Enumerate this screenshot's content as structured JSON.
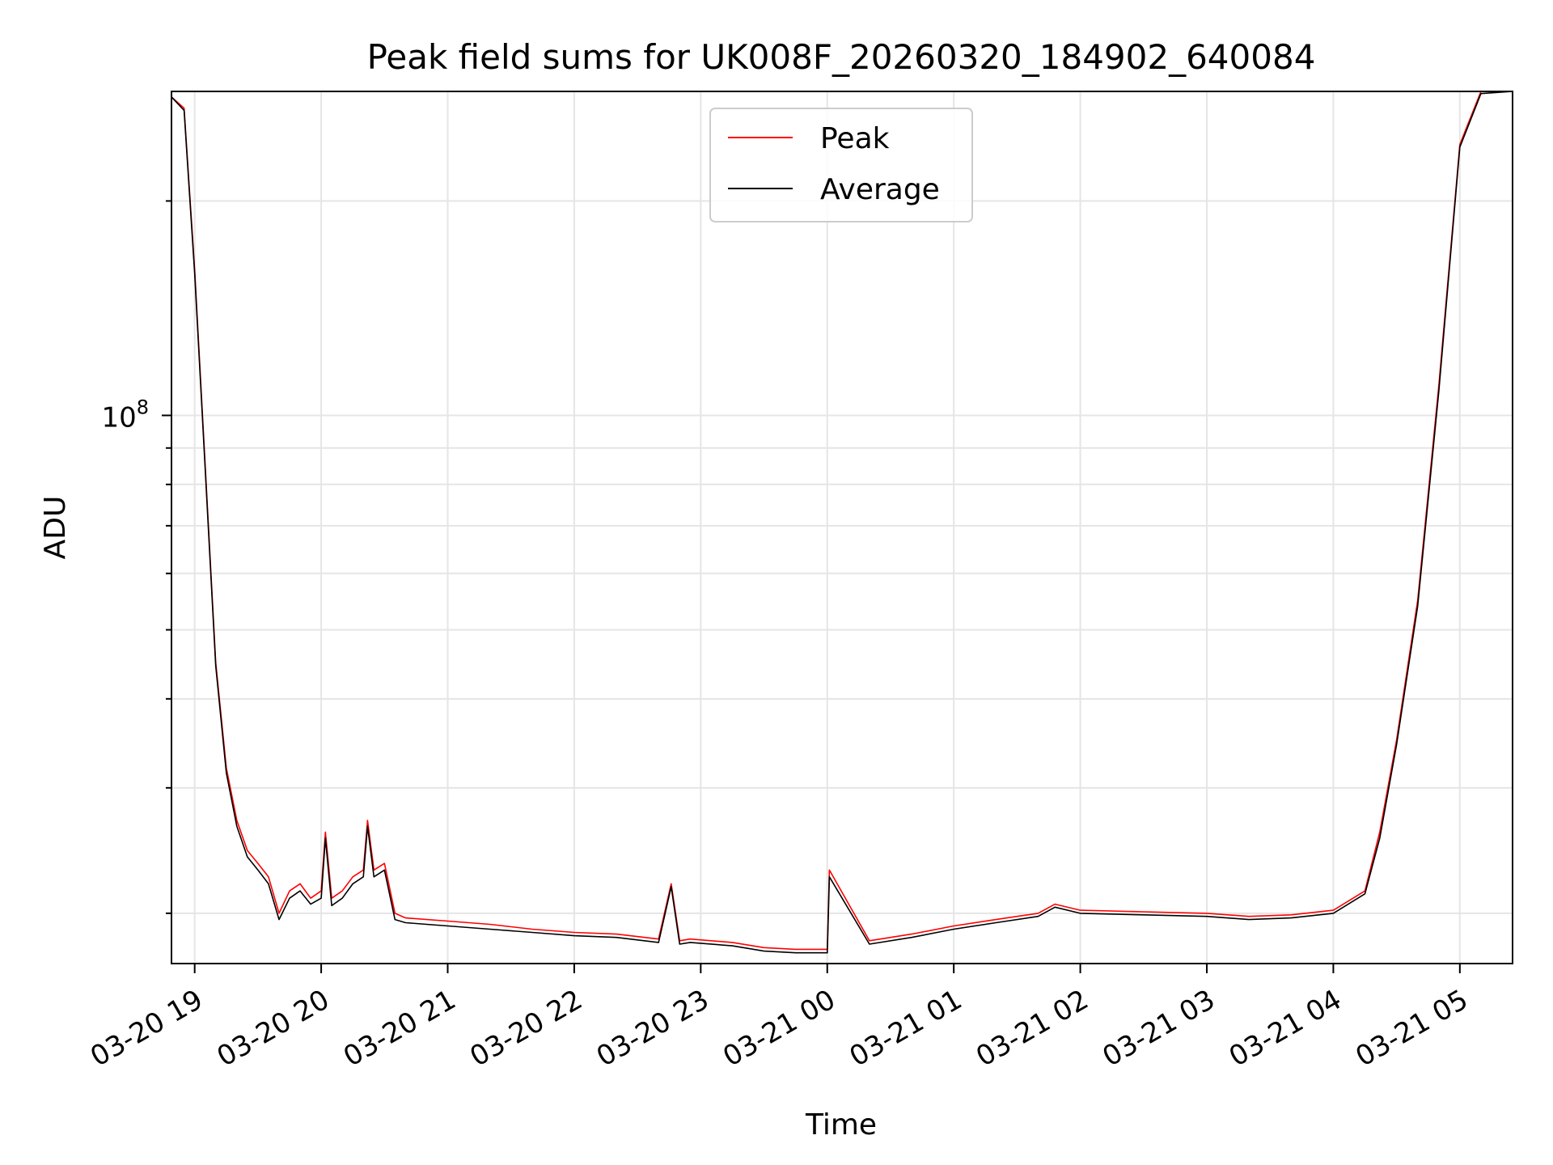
{
  "chart_data": {
    "type": "line",
    "title": "Peak field sums for UK008F_20260320_184902_640084",
    "xlabel": "Time",
    "ylabel": "ADU",
    "yscale": "log",
    "grid": true,
    "legend_position": "top-center",
    "xlim": [
      "2026-03-20 18:49",
      "2026-03-21 05:25"
    ],
    "ylim": [
      17000000,
      285000000
    ],
    "x_ticks": [
      "03-20 19",
      "03-20 20",
      "03-20 21",
      "03-20 22",
      "03-20 23",
      "03-21 00",
      "03-21 01",
      "03-21 02",
      "03-21 03",
      "03-21 04",
      "03-21 05"
    ],
    "y_ticks": [
      {
        "base": "10",
        "exp": "8",
        "value": 100000000
      }
    ],
    "series": [
      {
        "name": "Peak",
        "color": "#ff0000",
        "x": [
          "2026-03-20 18:49",
          "2026-03-20 18:55",
          "2026-03-20 19:00",
          "2026-03-20 19:05",
          "2026-03-20 19:10",
          "2026-03-20 19:15",
          "2026-03-20 19:20",
          "2026-03-20 19:25",
          "2026-03-20 19:30",
          "2026-03-20 19:35",
          "2026-03-20 19:40",
          "2026-03-20 19:45",
          "2026-03-20 19:50",
          "2026-03-20 19:55",
          "2026-03-20 20:00",
          "2026-03-20 20:02",
          "2026-03-20 20:05",
          "2026-03-20 20:10",
          "2026-03-20 20:15",
          "2026-03-20 20:20",
          "2026-03-20 20:22",
          "2026-03-20 20:25",
          "2026-03-20 20:30",
          "2026-03-20 20:35",
          "2026-03-20 20:40",
          "2026-03-20 21:00",
          "2026-03-20 21:20",
          "2026-03-20 21:40",
          "2026-03-20 22:00",
          "2026-03-20 22:20",
          "2026-03-20 22:40",
          "2026-03-20 22:46",
          "2026-03-20 22:50",
          "2026-03-20 22:55",
          "2026-03-20 23:15",
          "2026-03-20 23:30",
          "2026-03-20 23:45",
          "2026-03-21 00:00",
          "2026-03-21 00:01",
          "2026-03-21 00:20",
          "2026-03-21 00:40",
          "2026-03-21 01:00",
          "2026-03-21 01:20",
          "2026-03-21 01:40",
          "2026-03-21 01:48",
          "2026-03-21 02:00",
          "2026-03-21 02:30",
          "2026-03-21 03:00",
          "2026-03-21 03:20",
          "2026-03-21 03:40",
          "2026-03-21 04:00",
          "2026-03-21 04:15",
          "2026-03-21 04:22",
          "2026-03-21 04:30",
          "2026-03-21 04:40",
          "2026-03-21 04:50",
          "2026-03-21 05:00",
          "2026-03-21 05:10",
          "2026-03-21 05:25"
        ],
        "y": [
          280000000,
          270000000,
          160000000,
          85000000,
          45000000,
          32000000,
          27000000,
          24500000,
          23500000,
          22500000,
          20000000,
          21500000,
          22000000,
          21000000,
          21500000,
          26000000,
          21000000,
          21500000,
          22500000,
          23000000,
          27000000,
          23000000,
          23500000,
          20000000,
          19700000,
          19500000,
          19300000,
          19000000,
          18800000,
          18700000,
          18400000,
          22000000,
          18300000,
          18400000,
          18200000,
          17900000,
          17800000,
          17800000,
          23000000,
          18300000,
          18700000,
          19200000,
          19600000,
          20000000,
          20600000,
          20200000,
          20100000,
          20000000,
          19800000,
          19900000,
          20200000,
          21500000,
          26000000,
          35000000,
          55000000,
          110000000,
          240000000,
          285000000,
          285000000
        ]
      },
      {
        "name": "Average",
        "color": "#000000",
        "x": [
          "2026-03-20 18:49",
          "2026-03-20 18:55",
          "2026-03-20 19:00",
          "2026-03-20 19:05",
          "2026-03-20 19:10",
          "2026-03-20 19:15",
          "2026-03-20 19:20",
          "2026-03-20 19:25",
          "2026-03-20 19:30",
          "2026-03-20 19:35",
          "2026-03-20 19:40",
          "2026-03-20 19:45",
          "2026-03-20 19:50",
          "2026-03-20 19:55",
          "2026-03-20 20:00",
          "2026-03-20 20:02",
          "2026-03-20 20:05",
          "2026-03-20 20:10",
          "2026-03-20 20:15",
          "2026-03-20 20:20",
          "2026-03-20 20:22",
          "2026-03-20 20:25",
          "2026-03-20 20:30",
          "2026-03-20 20:35",
          "2026-03-20 20:40",
          "2026-03-20 21:00",
          "2026-03-20 21:20",
          "2026-03-20 21:40",
          "2026-03-20 22:00",
          "2026-03-20 22:20",
          "2026-03-20 22:40",
          "2026-03-20 22:46",
          "2026-03-20 22:50",
          "2026-03-20 22:55",
          "2026-03-20 23:15",
          "2026-03-20 23:30",
          "2026-03-20 23:45",
          "2026-03-21 00:00",
          "2026-03-21 00:01",
          "2026-03-21 00:20",
          "2026-03-21 00:40",
          "2026-03-21 01:00",
          "2026-03-21 01:20",
          "2026-03-21 01:40",
          "2026-03-21 01:48",
          "2026-03-21 02:00",
          "2026-03-21 02:30",
          "2026-03-21 03:00",
          "2026-03-21 03:20",
          "2026-03-21 03:40",
          "2026-03-21 04:00",
          "2026-03-21 04:15",
          "2026-03-21 04:22",
          "2026-03-21 04:30",
          "2026-03-21 04:40",
          "2026-03-21 04:50",
          "2026-03-21 05:00",
          "2026-03-21 05:10",
          "2026-03-21 05:25"
        ],
        "y": [
          280000000,
          268000000,
          158000000,
          84000000,
          44500000,
          31500000,
          26500000,
          24000000,
          23000000,
          22000000,
          19600000,
          21000000,
          21500000,
          20600000,
          21000000,
          25500000,
          20500000,
          21000000,
          22000000,
          22500000,
          26500000,
          22500000,
          23000000,
          19600000,
          19400000,
          19200000,
          19000000,
          18800000,
          18600000,
          18500000,
          18200000,
          21800000,
          18100000,
          18200000,
          18000000,
          17700000,
          17600000,
          17600000,
          22500000,
          18100000,
          18500000,
          19000000,
          19400000,
          19800000,
          20400000,
          20000000,
          19900000,
          19800000,
          19600000,
          19700000,
          20000000,
          21300000,
          25500000,
          34500000,
          54000000,
          108000000,
          238000000,
          283000000,
          285000000
        ]
      }
    ]
  }
}
